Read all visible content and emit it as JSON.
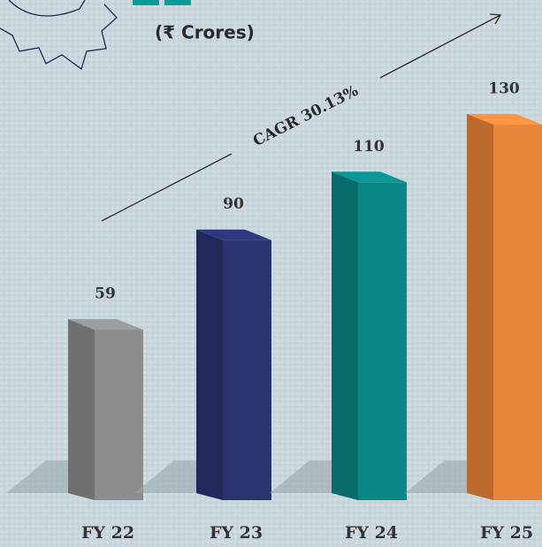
{
  "chart_data": {
    "type": "bar3d",
    "subtitle": "(₹ Crores)",
    "annotation": "CAGR 30.13%",
    "categories": [
      "FY 22",
      "FY 23",
      "FY 24",
      "FY 25"
    ],
    "values": [
      59,
      90,
      110,
      130
    ],
    "colors": [
      "#8c8c8c",
      "#28336f",
      "#0a8787",
      "#e8853a"
    ]
  }
}
